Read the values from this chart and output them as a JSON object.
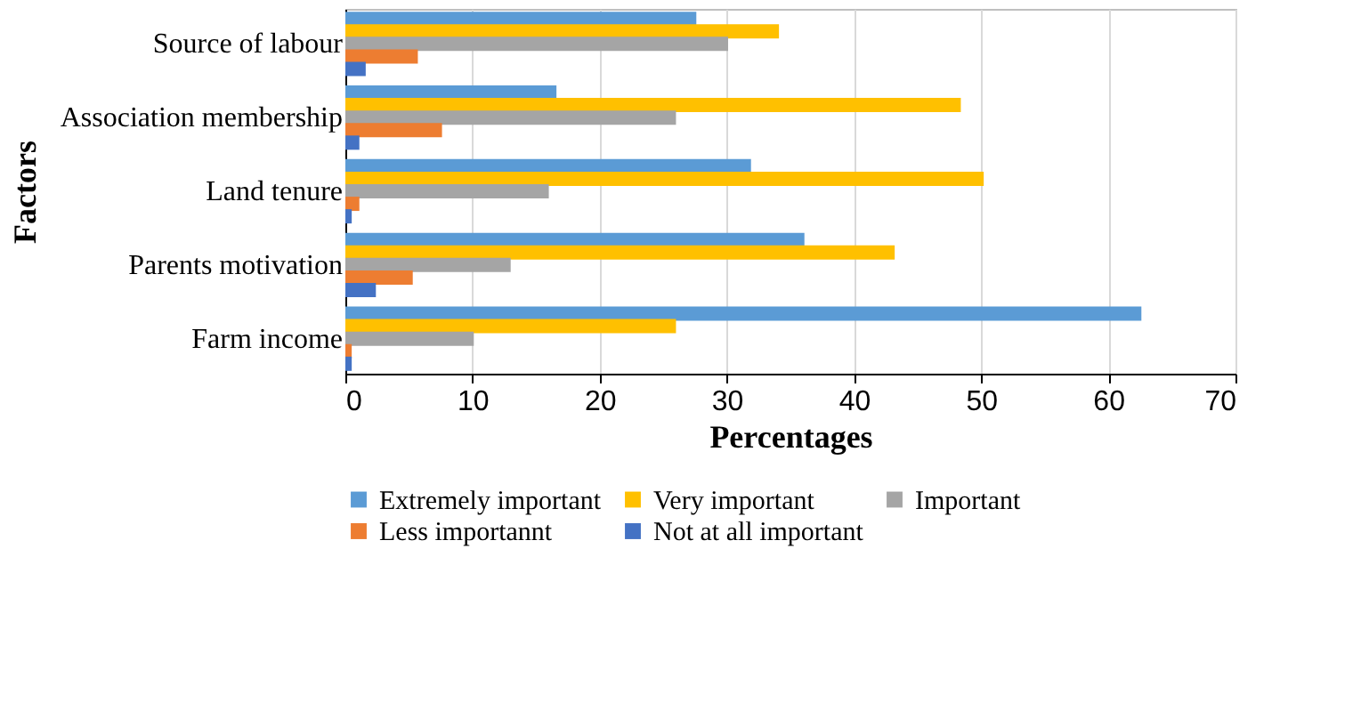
{
  "chart_data": {
    "type": "bar",
    "orientation": "horizontal",
    "xlabel": "Percentages",
    "ylabel": "Factors",
    "categories": [
      "Source of labour",
      "Association membership",
      "Land tenure",
      "Parents motivation",
      "Farm income"
    ],
    "series": [
      {
        "name": "Extremely important",
        "color": "#5b9bd5",
        "values": [
          27.6,
          16.6,
          31.9,
          36.1,
          62.6
        ]
      },
      {
        "name": "Very important",
        "color": "#ffc000",
        "values": [
          34.1,
          48.4,
          50.2,
          43.2,
          26.0
        ]
      },
      {
        "name": "Important",
        "color": "#a5a5a5",
        "values": [
          30.1,
          26.0,
          16.0,
          13.0,
          10.1
        ]
      },
      {
        "name": "Less importannt",
        "color": "#ed7d31",
        "values": [
          5.7,
          7.6,
          1.1,
          5.3,
          0.5
        ]
      },
      {
        "name": "Not at all important",
        "color": "#4472c4",
        "values": [
          1.6,
          1.1,
          0.5,
          2.4,
          0.5
        ]
      }
    ],
    "xlim": [
      0,
      70
    ],
    "xticks": [
      0,
      10,
      20,
      30,
      40,
      50,
      60,
      70
    ],
    "grid": "x",
    "legend": "bottom"
  }
}
